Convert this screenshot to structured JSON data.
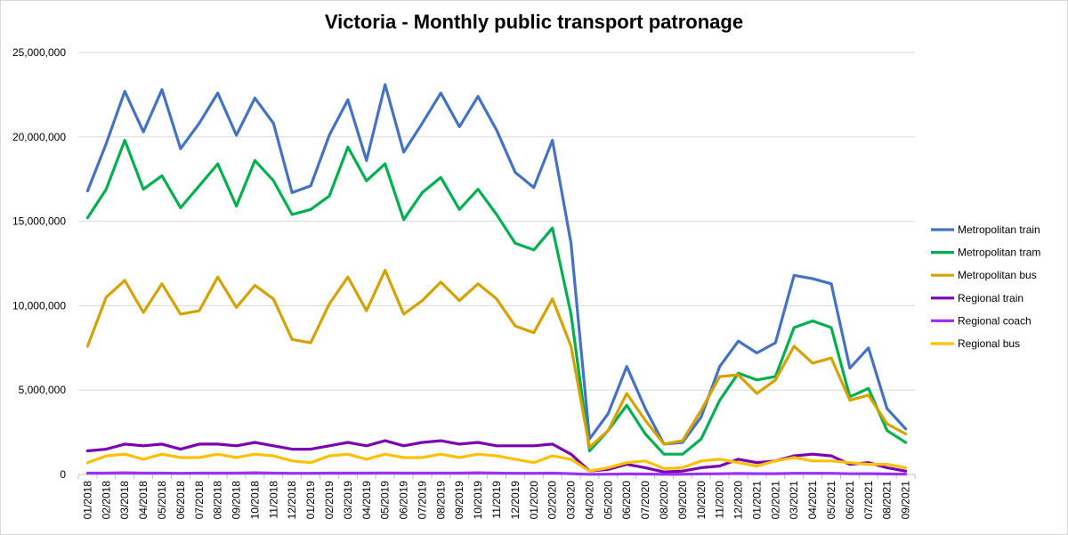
{
  "chart_data": {
    "type": "line",
    "title": "Victoria - Monthly public transport patronage",
    "xlabel": "",
    "ylabel": "",
    "ylim": [
      0,
      25000000
    ],
    "y_ticks": [
      0,
      5000000,
      10000000,
      15000000,
      20000000,
      25000000
    ],
    "y_tick_labels": [
      "0",
      "5,000,000",
      "10,000,000",
      "15,000,000",
      "20,000,000",
      "25,000,000"
    ],
    "grid": "horizontal",
    "legend_position": "right",
    "x": [
      "01/2018",
      "02/2018",
      "03/2018",
      "04/2018",
      "05/2018",
      "06/2018",
      "07/2018",
      "08/2018",
      "09/2018",
      "10/2018",
      "11/2018",
      "12/2018",
      "01/2019",
      "02/2019",
      "03/2019",
      "04/2019",
      "05/2019",
      "06/2019",
      "07/2019",
      "08/2019",
      "09/2019",
      "10/2019",
      "11/2019",
      "12/2019",
      "01/2020",
      "02/2020",
      "03/2020",
      "04/2020",
      "05/2020",
      "06/2020",
      "07/2020",
      "08/2020",
      "09/2020",
      "10/2020",
      "11/2020",
      "12/2020",
      "01/2021",
      "02/2021",
      "03/2021",
      "04/2021",
      "05/2021",
      "06/2021",
      "07/2021",
      "08/2021",
      "09/2021"
    ],
    "series": [
      {
        "name": "Metropolitan train",
        "color": "#4472c4",
        "values": [
          16800000,
          19600000,
          22700000,
          20300000,
          22800000,
          19300000,
          20800000,
          22600000,
          20100000,
          22300000,
          20800000,
          16700000,
          17100000,
          20100000,
          22200000,
          18600000,
          23100000,
          19100000,
          20800000,
          22600000,
          20600000,
          22400000,
          20400000,
          17900000,
          17000000,
          19800000,
          13700000,
          2100000,
          3600000,
          6400000,
          3900000,
          1800000,
          1900000,
          3400000,
          6400000,
          7900000,
          7200000,
          7800000,
          11800000,
          11600000,
          11300000,
          6300000,
          7500000,
          3900000,
          2700000
        ]
      },
      {
        "name": "Metropolitan tram",
        "color": "#00b050",
        "values": [
          15200000,
          16900000,
          19800000,
          16900000,
          17700000,
          15800000,
          17100000,
          18400000,
          15900000,
          18600000,
          17400000,
          15400000,
          15700000,
          16500000,
          19400000,
          17400000,
          18400000,
          15100000,
          16700000,
          17600000,
          15700000,
          16900000,
          15400000,
          13700000,
          13300000,
          14600000,
          9500000,
          1400000,
          2600000,
          4100000,
          2400000,
          1200000,
          1200000,
          2100000,
          4400000,
          6000000,
          5600000,
          5800000,
          8700000,
          9100000,
          8700000,
          4600000,
          5100000,
          2600000,
          1900000
        ]
      },
      {
        "name": "Metropolitan bus",
        "color": "#d4a300",
        "values": [
          7600000,
          10500000,
          11500000,
          9600000,
          11300000,
          9500000,
          9700000,
          11700000,
          9900000,
          11200000,
          10400000,
          8000000,
          7800000,
          10100000,
          11700000,
          9700000,
          12100000,
          9500000,
          10300000,
          11400000,
          10300000,
          11300000,
          10400000,
          8800000,
          8400000,
          10400000,
          7600000,
          1600000,
          2600000,
          4800000,
          3200000,
          1800000,
          2000000,
          3800000,
          5800000,
          5900000,
          4800000,
          5600000,
          7600000,
          6600000,
          6900000,
          4400000,
          4700000,
          3000000,
          2400000
        ]
      },
      {
        "name": "Regional train",
        "color": "#7b00b4",
        "values": [
          1400000,
          1500000,
          1800000,
          1700000,
          1800000,
          1500000,
          1800000,
          1800000,
          1700000,
          1900000,
          1700000,
          1500000,
          1500000,
          1700000,
          1900000,
          1700000,
          2000000,
          1700000,
          1900000,
          2000000,
          1800000,
          1900000,
          1700000,
          1700000,
          1700000,
          1800000,
          1200000,
          200000,
          300000,
          600000,
          400000,
          150000,
          200000,
          400000,
          500000,
          900000,
          700000,
          800000,
          1100000,
          1200000,
          1100000,
          600000,
          700000,
          400000,
          200000
        ]
      },
      {
        "name": "Regional coach",
        "color": "#9b30ff",
        "values": [
          80000,
          80000,
          100000,
          80000,
          80000,
          70000,
          80000,
          80000,
          80000,
          100000,
          80000,
          70000,
          70000,
          80000,
          80000,
          80000,
          90000,
          80000,
          80000,
          80000,
          80000,
          100000,
          80000,
          70000,
          70000,
          80000,
          50000,
          10000,
          15000,
          30000,
          25000,
          10000,
          15000,
          30000,
          40000,
          60000,
          50000,
          50000,
          70000,
          70000,
          70000,
          40000,
          50000,
          30000,
          20000
        ]
      },
      {
        "name": "Regional bus",
        "color": "#ffc000",
        "values": [
          700000,
          1100000,
          1200000,
          900000,
          1200000,
          1000000,
          1000000,
          1200000,
          1000000,
          1200000,
          1100000,
          800000,
          700000,
          1100000,
          1200000,
          900000,
          1200000,
          1000000,
          1000000,
          1200000,
          1000000,
          1200000,
          1100000,
          900000,
          700000,
          1100000,
          900000,
          200000,
          400000,
          700000,
          800000,
          350000,
          400000,
          800000,
          900000,
          700000,
          500000,
          800000,
          1000000,
          800000,
          800000,
          700000,
          600000,
          600000,
          400000
        ]
      }
    ]
  }
}
